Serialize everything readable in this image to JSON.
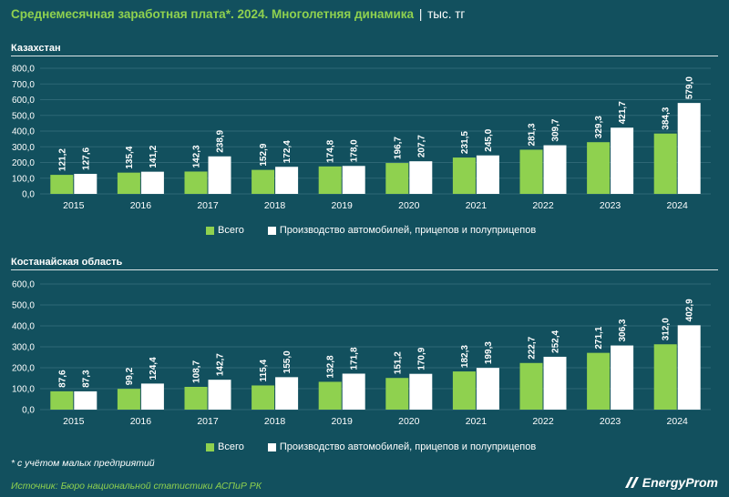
{
  "header": {
    "title": "Среднемесячная заработная плата*. 2024. Многолетняя динамика",
    "separator": "|",
    "unit": "тыс. тг"
  },
  "colors": {
    "background": "#12505e",
    "series_total": "#8fd14f",
    "series_auto": "#ffffff",
    "grid": "#2d6775"
  },
  "chart_data": [
    {
      "type": "bar",
      "title": "Казахстан",
      "categories": [
        "2015",
        "2016",
        "2017",
        "2018",
        "2019",
        "2020",
        "2021",
        "2022",
        "2023",
        "2024"
      ],
      "series": [
        {
          "name": "Всего",
          "values": [
            121.2,
            135.4,
            142.3,
            152.9,
            174.8,
            196.7,
            231.5,
            281.3,
            329.3,
            384.3
          ],
          "labels": [
            "121,2",
            "135,4",
            "142,3",
            "152,9",
            "174,8",
            "196,7",
            "231,5",
            "281,3",
            "329,3",
            "384,3"
          ]
        },
        {
          "name": "Производство автомобилей, прицепов и полуприцепов",
          "values": [
            127.6,
            141.2,
            238.9,
            172.4,
            178.0,
            207.7,
            245.0,
            309.7,
            421.7,
            579.0
          ],
          "labels": [
            "127,6",
            "141,2",
            "238,9",
            "172,4",
            "178,0",
            "207,7",
            "245,0",
            "309,7",
            "421,7",
            "579,0"
          ]
        }
      ],
      "yticks": [
        "0,0",
        "100,0",
        "200,0",
        "300,0",
        "400,0",
        "500,0",
        "600,0",
        "700,0",
        "800,0"
      ],
      "ylim": [
        0,
        800
      ],
      "grid": true,
      "legend": "bottom"
    },
    {
      "type": "bar",
      "title": "Костанайская область",
      "categories": [
        "2015",
        "2016",
        "2017",
        "2018",
        "2019",
        "2020",
        "2021",
        "2022",
        "2023",
        "2024"
      ],
      "series": [
        {
          "name": "Всего",
          "values": [
            87.6,
            99.2,
            108.7,
            115.4,
            132.8,
            151.2,
            182.3,
            222.7,
            271.1,
            312.0
          ],
          "labels": [
            "87,6",
            "99,2",
            "108,7",
            "115,4",
            "132,8",
            "151,2",
            "182,3",
            "222,7",
            "271,1",
            "312,0"
          ]
        },
        {
          "name": "Производство автомобилей, прицепов и полуприцепов",
          "values": [
            87.3,
            124.4,
            142.7,
            155.0,
            171.8,
            170.9,
            199.3,
            252.4,
            306.3,
            402.9
          ],
          "labels": [
            "87,3",
            "124,4",
            "142,7",
            "155,0",
            "171,8",
            "170,9",
            "199,3",
            "252,4",
            "306,3",
            "402,9"
          ]
        }
      ],
      "yticks": [
        "0,0",
        "100,0",
        "200,0",
        "300,0",
        "400,0",
        "500,0",
        "600,0"
      ],
      "ylim": [
        0,
        600
      ],
      "grid": true,
      "legend": "bottom"
    }
  ],
  "legend_items": [
    "Всего",
    "Производство автомобилей, прицепов и полуприцепов"
  ],
  "footnote": "* с учётом малых предприятий",
  "source": "Источник: Бюро национальной статистики АСПиР РК",
  "logo": "EnergyProm"
}
